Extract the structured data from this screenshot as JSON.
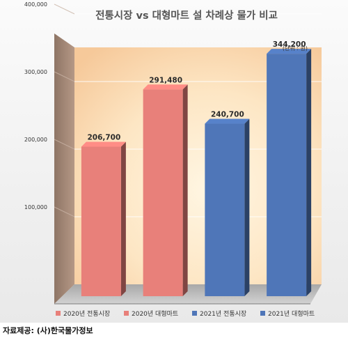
{
  "chart_data": {
    "type": "bar",
    "title": "전통시장 vs 대형마트  설 차례상 물가 비교",
    "unit_note": "(단위 : 원)",
    "categories": [
      "2020년 전통시장",
      "2020년 대형마트",
      "2021년 전통시장",
      "2021년 대형마트"
    ],
    "values": [
      206700,
      291480,
      240700,
      344200
    ],
    "value_labels": [
      "206,700",
      "291,480",
      "240,700",
      "344,200"
    ],
    "colors": [
      "#e8807a",
      "#e8807a",
      "#4f76b8",
      "#4f76b8"
    ],
    "ylim": [
      0,
      400000
    ],
    "yticks": [
      100000,
      200000,
      300000,
      400000
    ],
    "ytick_labels": [
      "100,000",
      "200,000",
      "300,000",
      "400,000"
    ],
    "legend": [
      {
        "label": "2020년 전통시장",
        "color": "#e8807a"
      },
      {
        "label": "2020년 대형마트",
        "color": "#e8807a"
      },
      {
        "label": "2021년 전통시장",
        "color": "#4f76b8"
      },
      {
        "label": "2021년 대형마트",
        "color": "#4f76b8"
      }
    ],
    "legend_position": "bottom",
    "grid": true
  },
  "source": "자료제공: (사)한국물가정보"
}
